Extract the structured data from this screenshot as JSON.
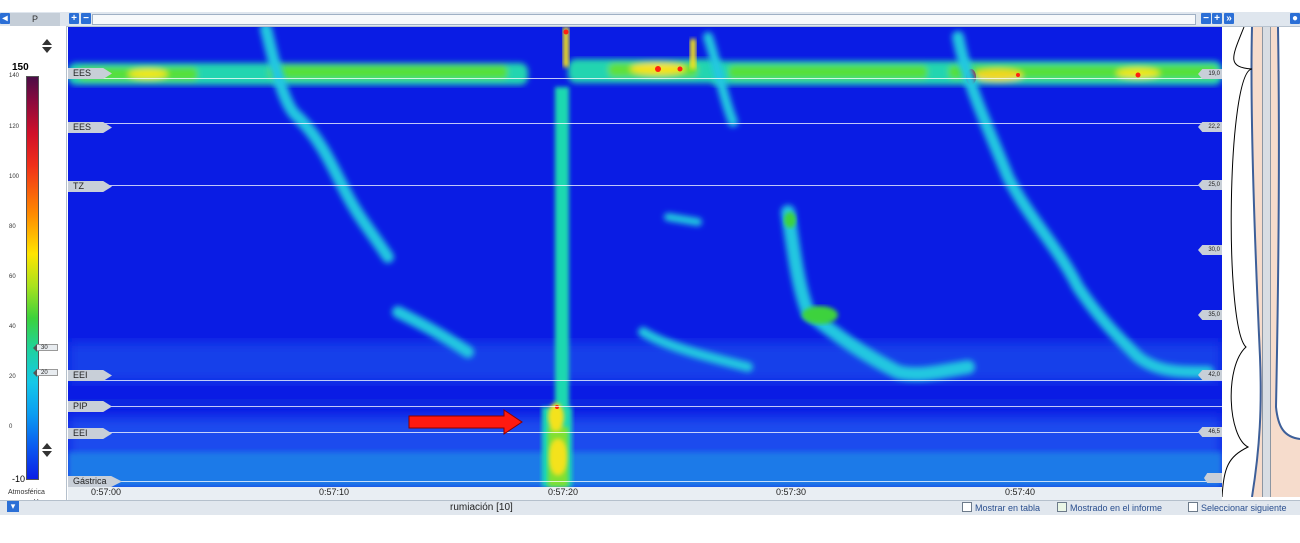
{
  "window": {
    "channel_label": "P",
    "top_buttons": [
      "+",
      "−"
    ],
    "top_right_buttons": [
      "−",
      "+",
      "»"
    ]
  },
  "color_scale": {
    "max_label": "150",
    "min_label": "-10",
    "ticks": [
      "140",
      "120",
      "100",
      "80",
      "60",
      "40",
      "20",
      "0"
    ],
    "markers": [
      "30",
      "20"
    ],
    "unit_line1": "Atmosférica",
    "unit_line2": "mmHg"
  },
  "sensors": {
    "left_tags": [
      "EES",
      "EES",
      "TZ",
      "EEI",
      "PIP",
      "EEI",
      "Gástrica"
    ],
    "right_depths": [
      "19,0",
      "22,2",
      "25,0",
      "30,0",
      "35,0",
      "42,0",
      "46,5"
    ]
  },
  "time_axis": {
    "labels": [
      "0:57:00",
      "0:57:10",
      "0:57:20",
      "0:57:30",
      "0:57:40"
    ]
  },
  "bottom_bar": {
    "swallow_title": "rumiación [10]",
    "show_table": "Mostrar en tabla",
    "shown_in_report": "Mostrado en el informe",
    "select_next": "Seleccionar siguiente"
  },
  "annotation": {
    "arrow_color": "#ff1a10"
  }
}
